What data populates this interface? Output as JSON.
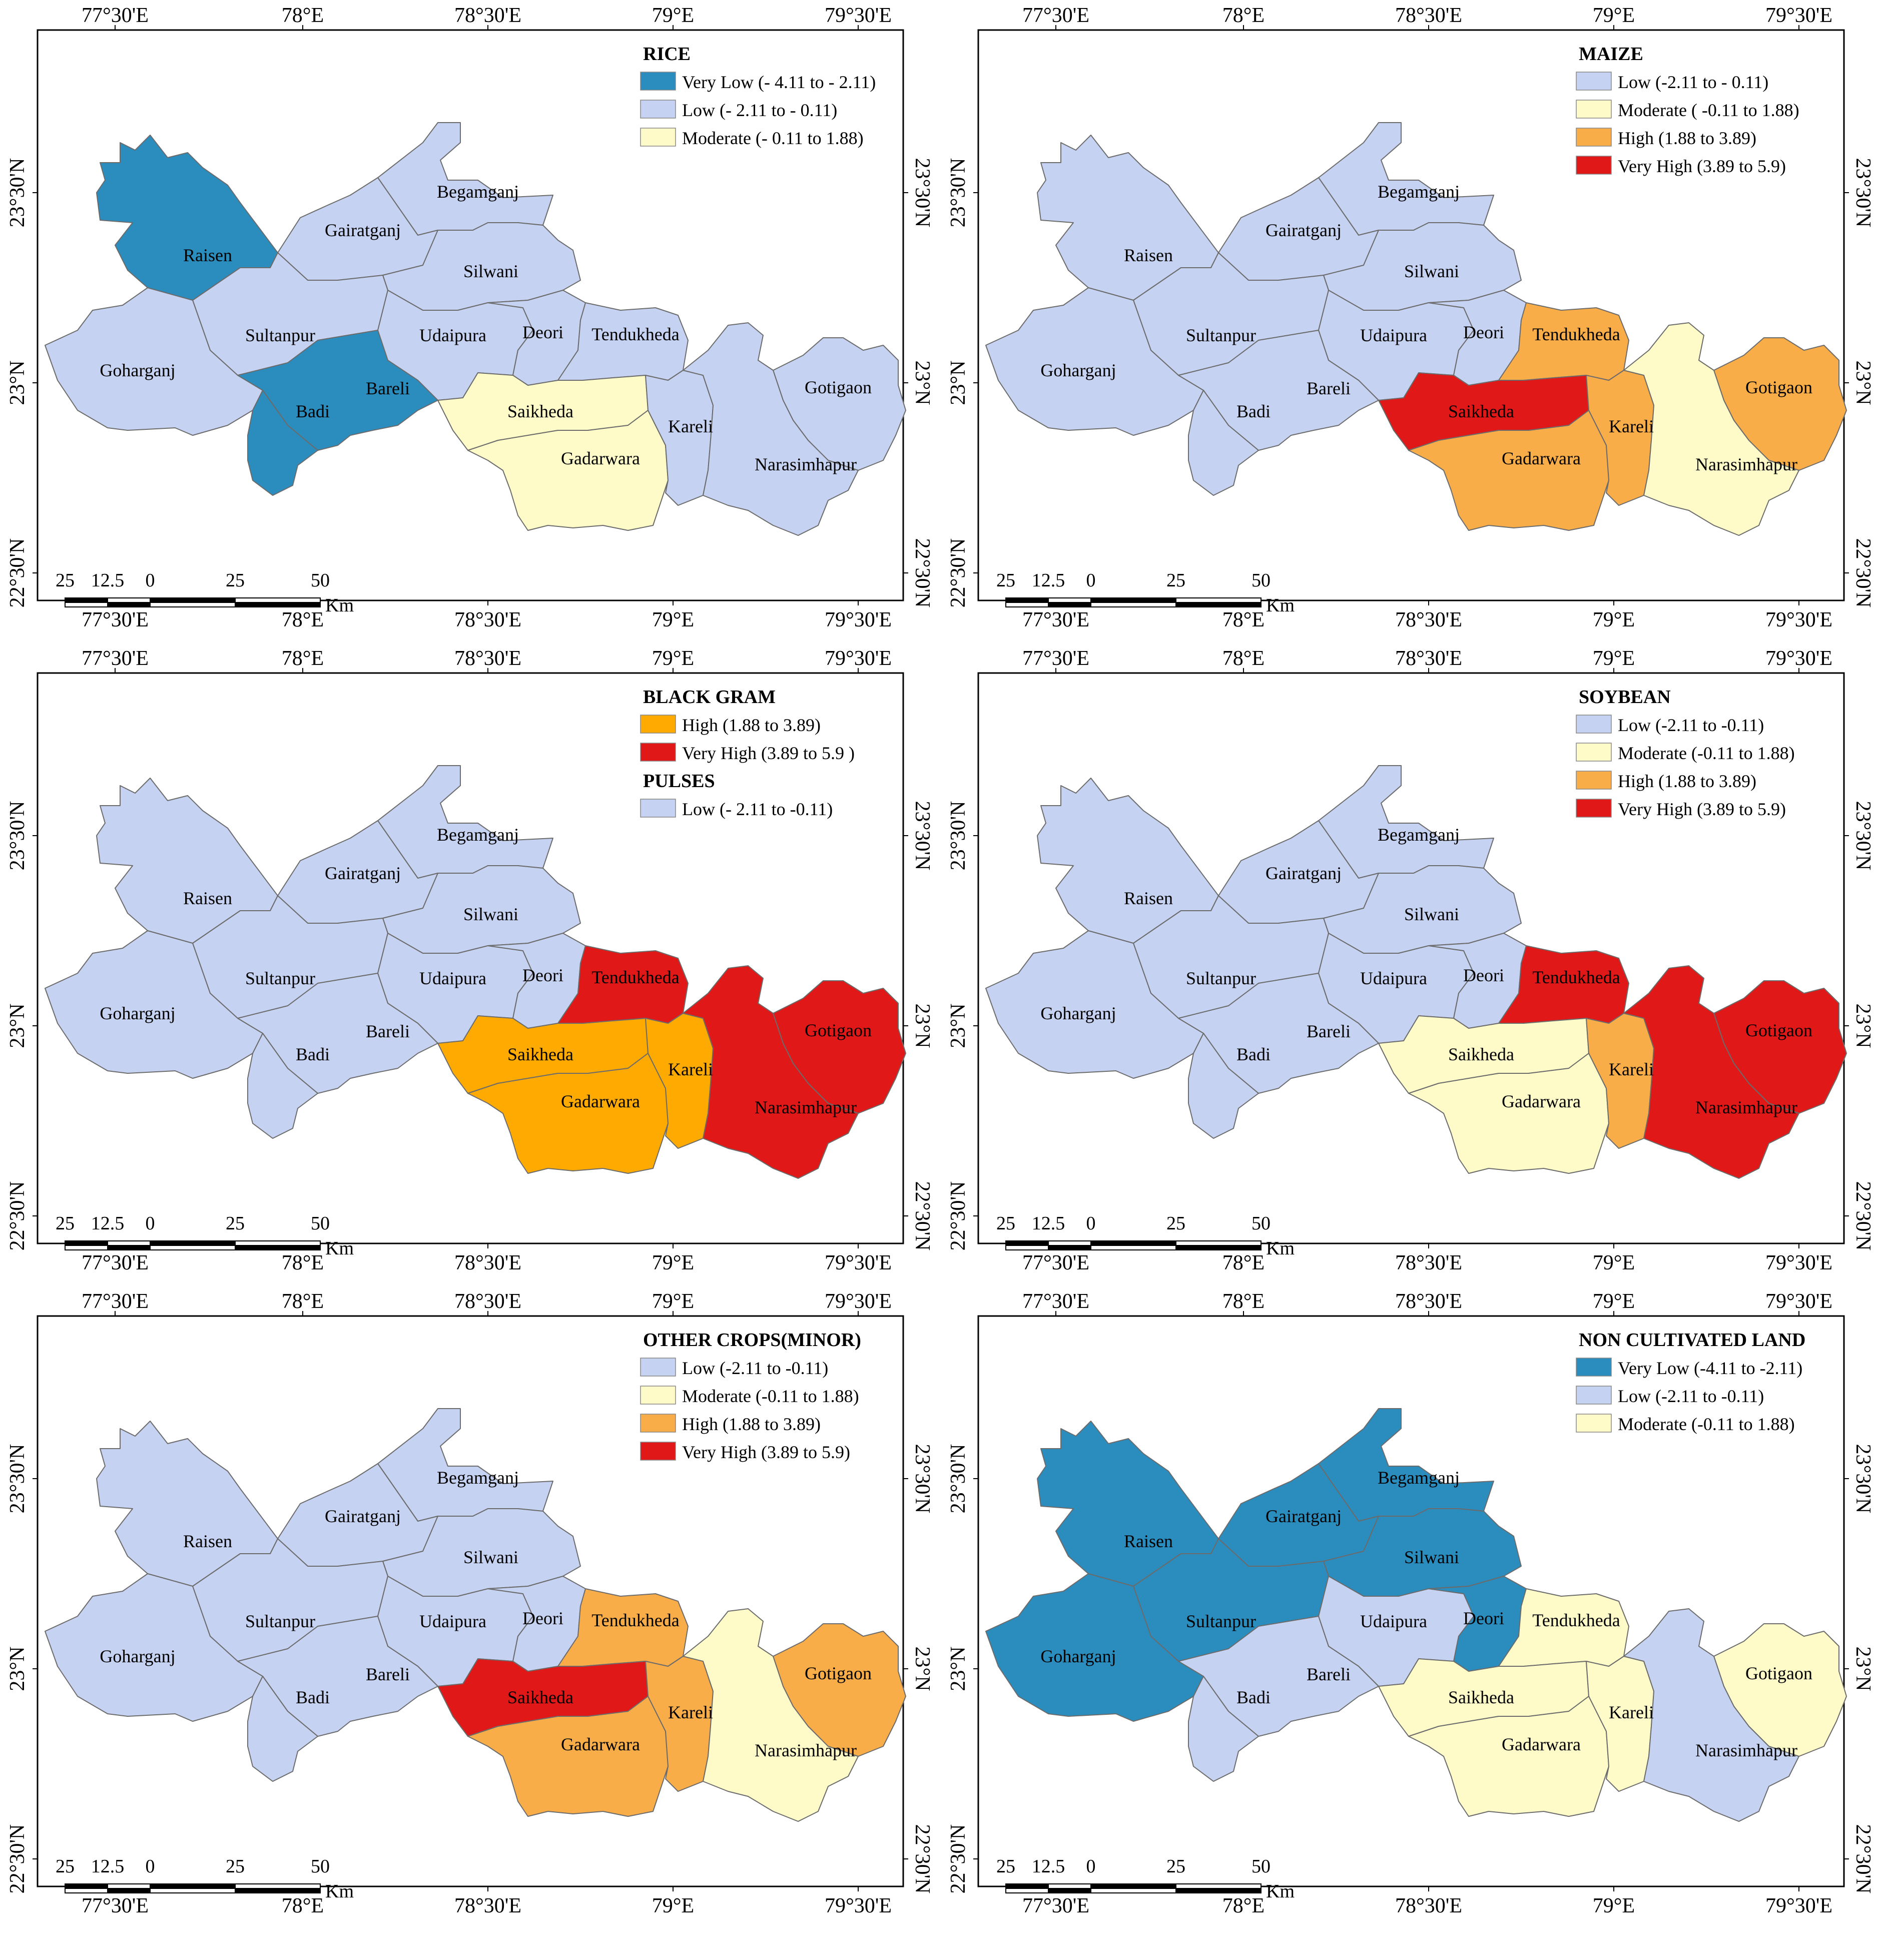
{
  "colors": {
    "very_low": "#2b8cbe",
    "low": "#c6d2f2",
    "moderate": "#fffbc8",
    "high": "#f9ad48",
    "high_bg": "#ffaa00",
    "very_high": "#e01818"
  },
  "axes": {
    "top_longitudes": [
      "77°30'E",
      "78°E",
      "78°30'E",
      "79°E",
      "79°30'E"
    ],
    "bottom_longitudes": [
      "77°30'E",
      "78°E",
      "78°30'E",
      "79°E",
      "79°30'E"
    ],
    "left_latitudes": [
      "23°30'N",
      "23°N",
      "22°30'N"
    ],
    "right_latitudes": [
      "23°30'N",
      "23°N",
      "22°30'N"
    ]
  },
  "scalebar": {
    "ticks": [
      "25",
      "12.5",
      "0",
      "25",
      "50"
    ],
    "unit": "Km"
  },
  "districts": [
    "Raisen",
    "Begamganj",
    "Gairatganj",
    "Silwani",
    "Sultanpur",
    "Udaipura",
    "Deori",
    "Tendukheda",
    "Goharganj",
    "Bareli",
    "Badi",
    "Saikheda",
    "Gadarwara",
    "Kareli",
    "Gotigaon",
    "Narasimhapur"
  ],
  "maps": [
    {
      "id": "rice",
      "legend": [
        {
          "title": "RICE",
          "items": [
            {
              "cls": "very_low",
              "label": "Very Low (- 4.11 to - 2.11)"
            },
            {
              "cls": "low",
              "label": "Low (- 2.11 to - 0.11)"
            },
            {
              "cls": "moderate",
              "label": "Moderate (- 0.11 to 1.88)"
            }
          ]
        }
      ],
      "fills": {
        "Raisen": "very_low",
        "Bareli": "very_low",
        "Badi": "very_low",
        "Saikheda": "moderate",
        "Gadarwara": "moderate"
      }
    },
    {
      "id": "maize",
      "legend": [
        {
          "title": "MAIZE",
          "items": [
            {
              "cls": "low",
              "label": "Low (-2.11 to - 0.11)"
            },
            {
              "cls": "moderate",
              "label": "Moderate ( -0.11 to 1.88)"
            },
            {
              "cls": "high",
              "label": "High (1.88 to 3.89)"
            },
            {
              "cls": "very_high",
              "label": "Very High (3.89 to 5.9)"
            }
          ]
        }
      ],
      "fills": {
        "Tendukheda": "high",
        "Gadarwara": "high",
        "Kareli": "high",
        "Gotigaon": "high",
        "Narasimhapur": "moderate",
        "Saikheda": "very_high"
      }
    },
    {
      "id": "black-gram",
      "legend": [
        {
          "title": "BLACK GRAM",
          "items": [
            {
              "cls": "high_bg",
              "label": "High (1.88 to 3.89)"
            },
            {
              "cls": "very_high",
              "label": "Very High (3.89 to 5.9 )"
            }
          ]
        },
        {
          "title": "PULSES",
          "items": [
            {
              "cls": "low",
              "label": "Low (- 2.11 to -0.11)"
            }
          ]
        }
      ],
      "fills": {
        "Tendukheda": "very_high",
        "Gotigaon": "very_high",
        "Narasimhapur": "very_high",
        "Saikheda": "high_bg",
        "Gadarwara": "high_bg",
        "Kareli": "high_bg"
      }
    },
    {
      "id": "soybean",
      "legend": [
        {
          "title": "SOYBEAN",
          "items": [
            {
              "cls": "low",
              "label": "Low (-2.11 to -0.11)"
            },
            {
              "cls": "moderate",
              "label": "Moderate (-0.11 to 1.88)"
            },
            {
              "cls": "high",
              "label": "High (1.88 to 3.89)"
            },
            {
              "cls": "very_high",
              "label": "Very High (3.89 to 5.9)"
            }
          ]
        }
      ],
      "fills": {
        "Tendukheda": "very_high",
        "Gotigaon": "very_high",
        "Narasimhapur": "very_high",
        "Kareli": "high",
        "Saikheda": "moderate",
        "Gadarwara": "moderate"
      }
    },
    {
      "id": "other-crops",
      "legend": [
        {
          "title": "OTHER CROPS(MINOR)",
          "items": [
            {
              "cls": "low",
              "label": "Low (-2.11 to -0.11)"
            },
            {
              "cls": "moderate",
              "label": "Moderate (-0.11 to 1.88)"
            },
            {
              "cls": "high",
              "label": "High (1.88 to 3.89)"
            },
            {
              "cls": "very_high",
              "label": "Very High (3.89 to 5.9)"
            }
          ]
        }
      ],
      "fills": {
        "Saikheda": "very_high",
        "Tendukheda": "high",
        "Gadarwara": "high",
        "Kareli": "high",
        "Gotigaon": "high",
        "Narasimhapur": "moderate"
      }
    },
    {
      "id": "non-cultivated",
      "legend": [
        {
          "title": "NON CULTIVATED LAND",
          "items": [
            {
              "cls": "very_low",
              "label": "Very Low (-4.11 to -2.11)"
            },
            {
              "cls": "low",
              "label": "Low (-2.11 to -0.11)"
            },
            {
              "cls": "moderate",
              "label": "Moderate (-0.11 to 1.88)"
            }
          ]
        }
      ],
      "fills": {
        "Raisen": "very_low",
        "Begamganj": "very_low",
        "Gairatganj": "very_low",
        "Silwani": "very_low",
        "Sultanpur": "very_low",
        "Goharganj": "very_low",
        "Deori": "very_low",
        "Tendukheda": "moderate",
        "Saikheda": "moderate",
        "Gadarwara": "moderate",
        "Kareli": "moderate",
        "Gotigaon": "moderate"
      }
    }
  ]
}
